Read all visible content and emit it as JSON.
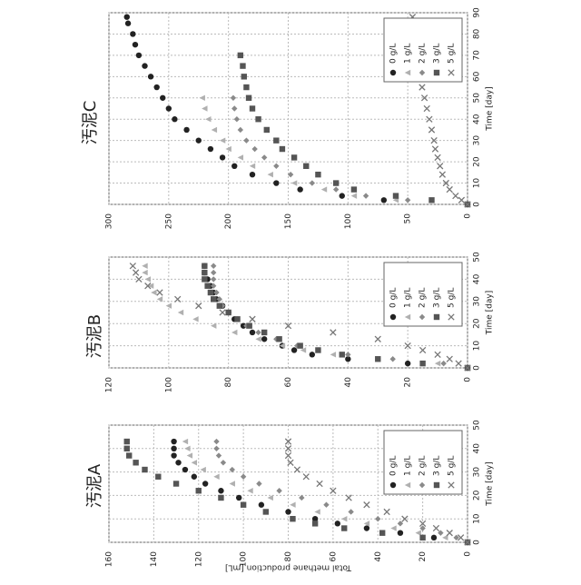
{
  "chart_data": [
    {
      "type": "scatter",
      "title": "汚泥A",
      "x_label": "Time [day]",
      "y_label": "Total methane production [mL]",
      "x": [
        0,
        2,
        4,
        6,
        8,
        10,
        13,
        16,
        19,
        22,
        25,
        28,
        31,
        34,
        37,
        40,
        43
      ],
      "series": [
        {
          "name": "0 g/L",
          "color": "#222222",
          "marker": "circle",
          "values": [
            0,
            15,
            30,
            45,
            58,
            68,
            80,
            92,
            102,
            110,
            117,
            122,
            126,
            129,
            131,
            131,
            131
          ]
        },
        {
          "name": "1 g/L",
          "color": "#b0b0b0",
          "marker": "triangle",
          "values": [
            0,
            10,
            22,
            33,
            45,
            55,
            67,
            78,
            88,
            97,
            105,
            112,
            118,
            122,
            124,
            125,
            126
          ]
        },
        {
          "name": "2 g/L",
          "color": "#8a8a8a",
          "marker": "diamond",
          "values": [
            0,
            5,
            12,
            20,
            30,
            40,
            52,
            63,
            74,
            84,
            93,
            100,
            105,
            109,
            111,
            112,
            112
          ]
        },
        {
          "name": "3 g/L",
          "color": "#555555",
          "marker": "square",
          "values": [
            0,
            20,
            38,
            55,
            68,
            78,
            90,
            100,
            110,
            120,
            130,
            138,
            144,
            148,
            151,
            152,
            152
          ]
        },
        {
          "name": "5 g/L",
          "color": "#777777",
          "marker": "x",
          "values": [
            0,
            3,
            8,
            14,
            20,
            28,
            36,
            45,
            53,
            60,
            66,
            72,
            76,
            79,
            80,
            80,
            80
          ]
        }
      ],
      "xlim": [
        0,
        50
      ],
      "xticks": [
        0,
        10,
        20,
        30,
        40,
        50
      ],
      "ylim": [
        0,
        160
      ],
      "yticks": [
        0,
        20,
        40,
        60,
        80,
        100,
        120,
        140,
        160
      ],
      "grid": true
    },
    {
      "type": "scatter",
      "title": "汚泥B",
      "x_label": "Time [day]",
      "x": [
        0,
        2,
        4,
        6,
        8,
        10,
        13,
        16,
        19,
        22,
        25,
        28,
        31,
        34,
        37,
        40,
        43,
        46
      ],
      "series": [
        {
          "name": "0 g/L",
          "color": "#222222",
          "marker": "circle",
          "values": [
            0,
            20,
            40,
            52,
            58,
            62,
            68,
            72,
            75,
            78,
            80,
            82,
            84,
            85,
            86,
            87,
            88,
            88
          ]
        },
        {
          "name": "1 g/L",
          "color": "#b0b0b0",
          "marker": "triangle",
          "values": [
            0,
            10,
            30,
            45,
            55,
            62,
            70,
            78,
            85,
            91,
            96,
            100,
            103,
            105,
            106,
            107,
            108,
            108
          ]
        },
        {
          "name": "2 g/L",
          "color": "#8a8a8a",
          "marker": "diamond",
          "values": [
            0,
            8,
            25,
            40,
            50,
            57,
            64,
            70,
            74,
            77,
            80,
            82,
            83,
            84,
            85,
            85,
            85,
            85
          ]
        },
        {
          "name": "3 g/L",
          "color": "#555555",
          "marker": "square",
          "values": [
            0,
            15,
            30,
            42,
            50,
            56,
            63,
            68,
            73,
            77,
            80,
            83,
            85,
            86,
            87,
            88,
            88,
            88
          ]
        },
        {
          "name": "5 g/L",
          "color": "#777777",
          "marker": "x",
          "values": [
            0,
            3,
            6,
            10,
            15,
            20,
            30,
            45,
            60,
            72,
            82,
            90,
            97,
            103,
            107,
            110,
            111,
            112
          ]
        }
      ],
      "xlim": [
        0,
        50
      ],
      "xticks": [
        0,
        10,
        20,
        30,
        40,
        50
      ],
      "ylim": [
        0,
        120
      ],
      "yticks": [
        0,
        20,
        40,
        60,
        80,
        100,
        120
      ],
      "grid": true
    },
    {
      "type": "scatter",
      "title": "汚泥C",
      "x_label": "Time [day]",
      "x": [
        0,
        2,
        4,
        7,
        10,
        14,
        18,
        22,
        26,
        30,
        35,
        40,
        45,
        50,
        55,
        60,
        65,
        70,
        75,
        80,
        85,
        88
      ],
      "series": [
        {
          "name": "0 g/L",
          "color": "#222222",
          "marker": "circle",
          "values": [
            0,
            70,
            105,
            140,
            160,
            180,
            195,
            205,
            215,
            225,
            235,
            245,
            250,
            255,
            260,
            265,
            270,
            275,
            278,
            280,
            284,
            285
          ]
        },
        {
          "name": "1 g/L",
          "color": "#b0b0b0",
          "marker": "triangle",
          "values": [
            0,
            60,
            95,
            120,
            145,
            165,
            180,
            190,
            200,
            205,
            212,
            217,
            220,
            222,
            null,
            null,
            null,
            null,
            null,
            null,
            null,
            null
          ]
        },
        {
          "name": "2 g/L",
          "color": "#8a8a8a",
          "marker": "diamond",
          "values": [
            0,
            50,
            85,
            110,
            130,
            148,
            160,
            170,
            178,
            185,
            190,
            193,
            195,
            196,
            null,
            null,
            null,
            null,
            null,
            null,
            null,
            null
          ]
        },
        {
          "name": "3 g/L",
          "color": "#555555",
          "marker": "square",
          "values": [
            0,
            30,
            60,
            95,
            110,
            125,
            135,
            145,
            155,
            160,
            168,
            175,
            180,
            183,
            185,
            187,
            188,
            190,
            null,
            null,
            null,
            null
          ]
        },
        {
          "name": "5 g/L",
          "color": "#777777",
          "marker": "x",
          "values": [
            0,
            5,
            10,
            15,
            18,
            21,
            23,
            25,
            27,
            28,
            30,
            32,
            34,
            36,
            38,
            40,
            42,
            43,
            44,
            45,
            45,
            46
          ]
        }
      ],
      "xlim": [
        0,
        90
      ],
      "xticks": [
        0,
        10,
        20,
        30,
        40,
        50,
        60,
        70,
        80,
        90
      ],
      "ylim": [
        0,
        300
      ],
      "yticks": [
        0,
        50,
        100,
        150,
        200,
        250,
        300
      ],
      "grid": true
    }
  ]
}
